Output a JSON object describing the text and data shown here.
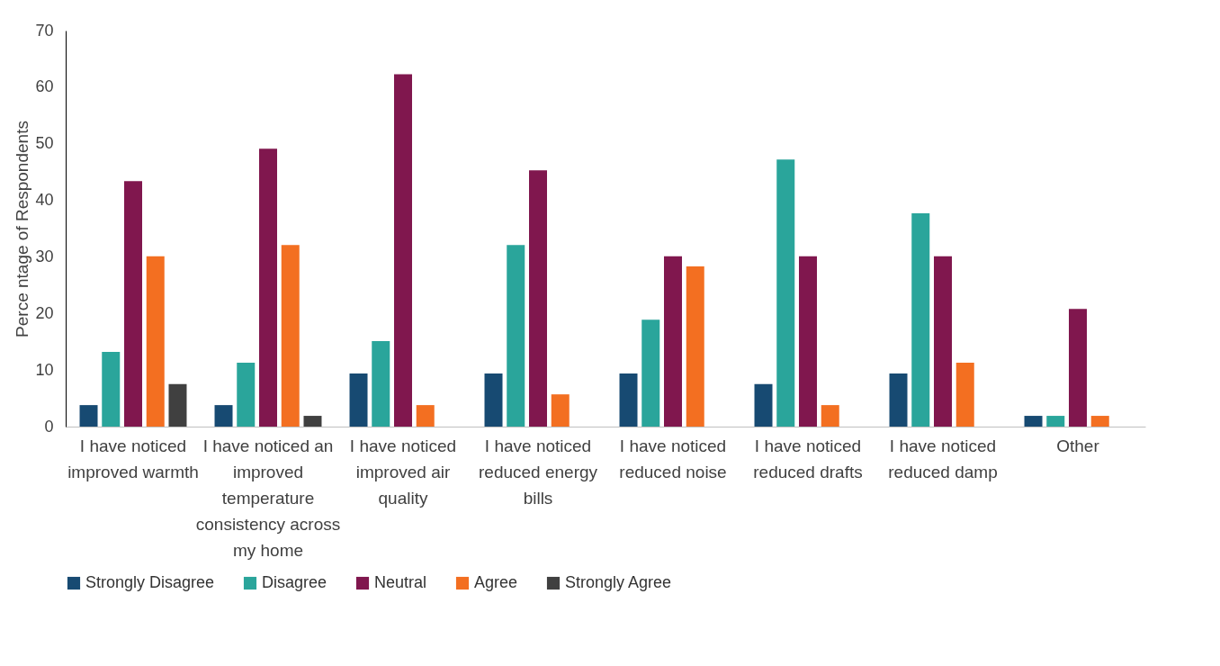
{
  "chart_data": {
    "type": "bar",
    "ylabel": "Perce ntage of Respondents",
    "categories": [
      "I have noticed improved warmth",
      "I have noticed an improved temperature consistency across my home",
      "I have noticed improved air quality",
      "I have noticed reduced energy bills",
      "I have noticed reduced noise",
      "I have noticed reduced drafts",
      "I have noticed reduced damp",
      "Other"
    ],
    "series": [
      {
        "name": "Strongly Disagree",
        "color": "#174a72",
        "values": [
          3.8,
          3.8,
          9.4,
          9.4,
          9.4,
          7.5,
          9.4,
          1.9
        ]
      },
      {
        "name": "Disagree",
        "color": "#2aa59b",
        "values": [
          13.2,
          11.3,
          15.1,
          32.1,
          18.9,
          47.2,
          37.7,
          1.9
        ]
      },
      {
        "name": "Neutral",
        "color": "#80174e",
        "values": [
          43.4,
          49.1,
          62.3,
          45.3,
          30.1,
          30.1,
          30.1,
          20.8
        ]
      },
      {
        "name": "Agree",
        "color": "#f36f21",
        "values": [
          30.1,
          32.1,
          3.8,
          5.7,
          28.3,
          3.8,
          11.3,
          1.9
        ]
      },
      {
        "name": "Strongly Agree",
        "color": "#404040",
        "values": [
          7.5,
          1.9,
          null,
          null,
          null,
          null,
          null,
          null
        ]
      }
    ],
    "ylim": [
      0,
      70
    ],
    "yticks": [
      0,
      10,
      20,
      30,
      40,
      50,
      60,
      70
    ],
    "grid": false,
    "legend": "bottom"
  }
}
